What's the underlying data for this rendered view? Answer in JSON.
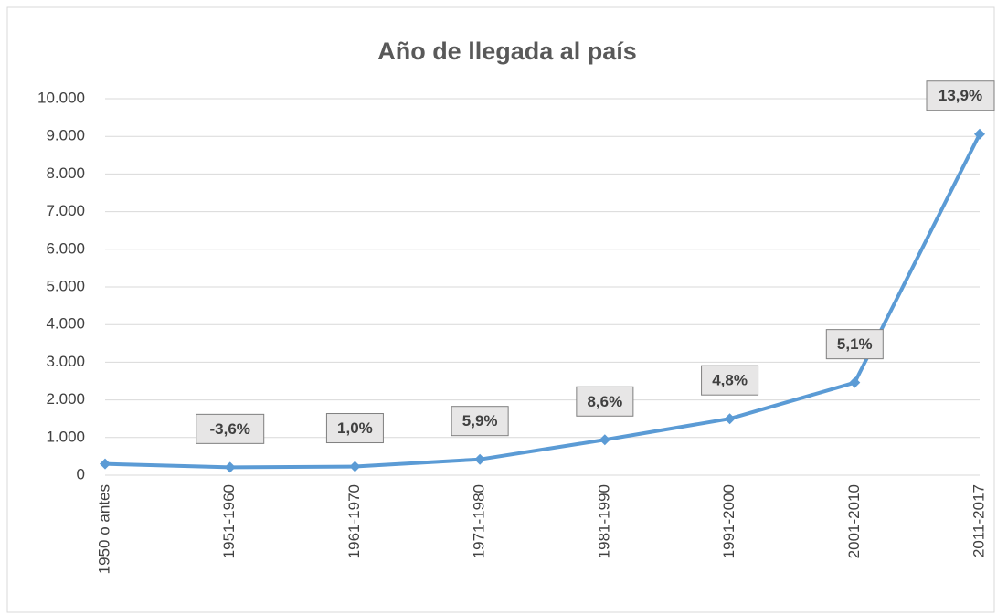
{
  "chart_data": {
    "type": "line",
    "title": "Año de llegada al país",
    "categories": [
      "1950 o antes",
      "1951-1960",
      "1961-1970",
      "1971-1980",
      "1981-1990",
      "1991-2000",
      "2001-2010",
      "2011-2017"
    ],
    "series": [
      {
        "name": "Año de llegada",
        "color": "#5b9bd5",
        "values": [
          300,
          210,
          230,
          420,
          940,
          1500,
          2460,
          9060
        ]
      }
    ],
    "annotations": [
      null,
      "-3,6%",
      "1,0%",
      "5,9%",
      "8,6%",
      "4,8%",
      "5,1%",
      "13,9%"
    ],
    "ylim": [
      0,
      10000
    ],
    "yticks": [
      0,
      {
        "value": 1000,
        "label": "1.000"
      },
      {
        "value": 2000,
        "label": "2.000"
      },
      {
        "value": 3000,
        "label": "3.000"
      },
      {
        "value": 4000,
        "label": "4.000"
      },
      {
        "value": 5000,
        "label": "5.000"
      },
      {
        "value": 6000,
        "label": "6.000"
      },
      {
        "value": 7000,
        "label": "7.000"
      },
      {
        "value": 8000,
        "label": "8.000"
      },
      {
        "value": 9000,
        "label": "9.000"
      },
      {
        "value": 10000,
        "label": "10.000"
      }
    ],
    "grid": true
  }
}
